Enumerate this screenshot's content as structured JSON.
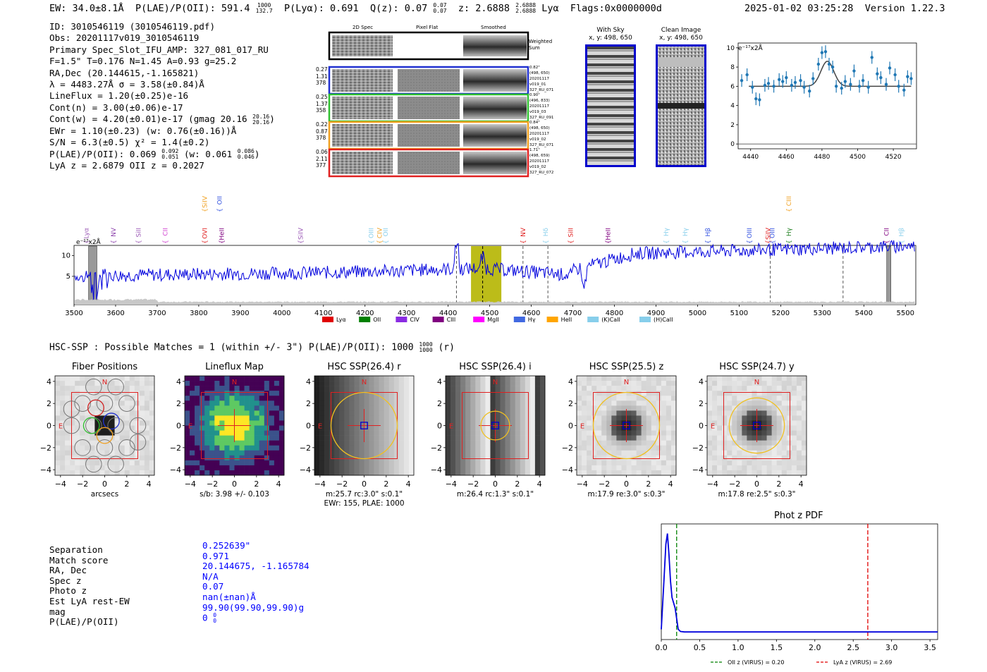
{
  "header": {
    "ew": "EW: 34.0±8.1Å",
    "plae_label": "P(LAE)/P(OII): 591.4",
    "plae_hi": "1000",
    "plae_lo": "132.7",
    "plya": "P(Lyα): 0.691",
    "qz_label": "Q(z): 0.07",
    "qz_hi": "0.07",
    "qz_lo": "0.07",
    "z_label": "z: 2.6888",
    "z_hi": "2.6888",
    "z_lo": "2.6888",
    "z_line": "Lyα",
    "flags": "Flags:0x0000000d",
    "timestamp": "2025-01-02 03:25:28",
    "version": "Version 1.22.3"
  },
  "info": {
    "id": "ID: 3010546119 (3010546119.pdf)",
    "obs": "Obs: 20201117v019_3010546119",
    "primary": "Primary Spec_Slot_IFU_AMP: 327_081_017_RU",
    "fiber": "F=1.5\"  T=0.176  N=1.45  A=0.93  g=25.2",
    "radec": "RA,Dec (20.144615,-1.165821)",
    "lambda": "λ = 4483.27Å  σ = 3.58(±0.84)Å",
    "lineflux": "LineFlux = 1.20(±0.25)e-16",
    "contn": "Cont(n) = 3.00(±0.06)e-17",
    "contw": "Cont(w) = 4.20(±0.01)e-17 (gmag 20.16",
    "contw_hi": "20.16",
    "contw_lo": "20.16",
    "contw_end": ")",
    "ewr": "EWr = 1.10(±0.23) (w: 0.76(±0.16))Å",
    "sn": "S/N = 6.3(±0.5)  χ² = 1.4(±0.2)",
    "plae2": "P(LAE)/P(OII): 0.069",
    "plae2_hi": "0.092",
    "plae2_lo": "0.051",
    "plae2_w": "(w: 0.061",
    "plae2_w_hi": "0.086",
    "plae2_w_lo": "0.046",
    "plae2_end": ")",
    "lyaz": "LyA z = 2.6879  OII z = 0.2027"
  },
  "cutouts": {
    "col_2d": "2D Spec",
    "col_flat": "Pixel Flat",
    "col_smooth": "Smoothed",
    "weighted": "Weighted Sum",
    "rows": [
      {
        "l1": "0.27",
        "l2": "1.31",
        "l3": "378",
        "r1": "0.82\"",
        "r2": "(498, 650)",
        "r3": "20201117",
        "r4": "v019_01",
        "r5": "327_RU_071",
        "color": "#2030d0"
      },
      {
        "l1": "0.25",
        "l2": "1.37",
        "l3": "358",
        "r1": "0.90\"",
        "r2": "(496, 833)",
        "r3": "20201117",
        "r4": "v019_03",
        "r5": "327_RU_091",
        "color": "#30c030"
      },
      {
        "l1": "0.22",
        "l2": "0.87",
        "l3": "378",
        "r1": "0.84\"",
        "r2": "(498, 650)",
        "r3": "20201117",
        "r4": "v019_02",
        "r5": "327_RU_071",
        "color": "#f0a020"
      },
      {
        "l1": "0.06",
        "l2": "2.11",
        "l3": "377",
        "r1": "1.71\"",
        "r2": "(498, 659)",
        "r3": "20201117",
        "r4": "v019_02",
        "r5": "327_RU_072",
        "color": "#e02020"
      }
    ],
    "with_sky_title": "With Sky",
    "with_sky_xy": "x, y: 498, 650",
    "clean_title": "Clean Image",
    "clean_xy": "x, y: 498, 650"
  },
  "gauss_plot": {
    "unit": "e⁻¹⁷x2Å",
    "x_ticks": [
      "4440",
      "4460",
      "4480",
      "4500",
      "4520"
    ],
    "y_ticks": [
      "0",
      "2",
      "4",
      "6",
      "8",
      "10"
    ]
  },
  "spectrum": {
    "unit": "e⁻¹⁷x2Å",
    "x_ticks": [
      "3500",
      "3600",
      "3700",
      "3800",
      "3900",
      "4000",
      "4100",
      "4200",
      "4300",
      "4400",
      "4500",
      "4600",
      "4700",
      "4800",
      "4900",
      "5000",
      "5100",
      "5200",
      "5300",
      "5400",
      "5500"
    ],
    "y_ticks": [
      "5",
      "10"
    ],
    "lines": [
      {
        "label": "Lyα",
        "wave": 3530,
        "color": "#9b59b6",
        "row": 0
      },
      {
        "label": "NV",
        "wave": 3595,
        "color": "#8e44ad",
        "row": 0
      },
      {
        "label": "SiII",
        "wave": 3655,
        "color": "#9b59b6",
        "row": 0
      },
      {
        "label": "CII",
        "wave": 3720,
        "color": "#d040d0",
        "row": 0
      },
      {
        "label": "OVI",
        "wave": 3815,
        "color": "#e02020",
        "row": 0
      },
      {
        "label": "HeII",
        "wave": 3855,
        "color": "#800080",
        "row": 0
      },
      {
        "label": "SiIV",
        "wave": 3815,
        "color": "#f0a020",
        "row": 2
      },
      {
        "label": "OII",
        "wave": 3850,
        "color": "#3050e0",
        "row": 2
      },
      {
        "label": "SiIV",
        "wave": 4045,
        "color": "#9b59b6",
        "row": 0
      },
      {
        "label": "OIII",
        "wave": 4215,
        "color": "#87ceeb",
        "row": 0
      },
      {
        "label": "CIV",
        "wave": 4235,
        "color": "#f0a020",
        "row": 0
      },
      {
        "label": "OII",
        "wave": 4250,
        "color": "#87ceeb",
        "row": 0
      },
      {
        "label": "NV",
        "wave": 4580,
        "color": "#e02020",
        "row": 0
      },
      {
        "label": "Hδ",
        "wave": 4635,
        "color": "#87ceeb",
        "row": 0
      },
      {
        "label": "SiII",
        "wave": 4695,
        "color": "#e02020",
        "row": 0
      },
      {
        "label": "HeII",
        "wave": 4785,
        "color": "#800080",
        "row": 0
      },
      {
        "label": "Hγ",
        "wave": 4925,
        "color": "#87ceeb",
        "row": 0
      },
      {
        "label": "Hγ",
        "wave": 4970,
        "color": "#87ceeb",
        "row": 0
      },
      {
        "label": "Hβ",
        "wave": 5025,
        "color": "#3050e0",
        "row": 0
      },
      {
        "label": "OIII",
        "wave": 5125,
        "color": "#3050e0",
        "row": 0
      },
      {
        "label": "SiIV",
        "wave": 5170,
        "color": "#e02020",
        "row": 0
      },
      {
        "label": "OIII",
        "wave": 5180,
        "color": "#3050e0",
        "row": 0
      },
      {
        "label": "Hγ",
        "wave": 5220,
        "color": "#208020",
        "row": 0
      },
      {
        "label": "CIII",
        "wave": 5220,
        "color": "#f0a020",
        "row": 2
      },
      {
        "label": "CII",
        "wave": 5455,
        "color": "#800080",
        "row": 0
      },
      {
        "label": "Hβ",
        "wave": 5490,
        "color": "#87ceeb",
        "row": 0
      }
    ],
    "legend": [
      {
        "label": "Lyα",
        "color": "#e00000"
      },
      {
        "label": "OII",
        "color": "#008000"
      },
      {
        "label": "CIV",
        "color": "#8a2be2"
      },
      {
        "label": "CIII",
        "color": "#800080"
      },
      {
        "label": "MgII",
        "color": "#ff00ff"
      },
      {
        "label": "Hγ",
        "color": "#4169e1"
      },
      {
        "label": "HeII",
        "color": "#ffa500"
      },
      {
        "label": "(K)CaII",
        "color": "#87ceeb"
      },
      {
        "label": "(H)CaII",
        "color": "#87ceeb"
      }
    ]
  },
  "hsc_line": {
    "text": "HSC-SSP : Possible Matches = 1 (within +/- 3\")  P(LAE)/P(OII): 1000",
    "hi": "1000",
    "lo": "1000",
    "end": "(r)"
  },
  "panels": [
    {
      "title": "Fiber Positions",
      "caption": "arcsecs",
      "caption2": ""
    },
    {
      "title": "Lineflux Map",
      "caption": "s/b: 3.98 +/- 0.103",
      "caption2": ""
    },
    {
      "title": "HSC SSP(26.4) r",
      "caption": "m:25.7 rc:3.0\"  s:0.1\"",
      "caption2": "EWr: 155, PLAE: 1000"
    },
    {
      "title": "HSC SSP(26.4) i",
      "caption": "m:26.4 rc:1.3\"  s:0.1\"",
      "caption2": ""
    },
    {
      "title": "HSC SSP(25.5) z",
      "caption": "m:17.9  re:3.0\"  s:0.3\"",
      "caption2": ""
    },
    {
      "title": "HSC SSP(24.7) y",
      "caption": "m:17.8  re:2.5\"  s:0.3\"",
      "caption2": ""
    }
  ],
  "panel_ticks": [
    "4",
    "2",
    "0",
    "−2",
    "−4"
  ],
  "panel_xticks": [
    "−4",
    "−2",
    "0",
    "2",
    "4"
  ],
  "panel_N": "N",
  "panel_E": "E",
  "match": {
    "labels": [
      "Separation",
      "Match score",
      "RA, Dec",
      "Spec z",
      "Photo z",
      "Est LyA rest-EW",
      "mag",
      "P(LAE)/P(OII)"
    ],
    "values": [
      "0.252639\"",
      "0.971",
      "20.144675, -1.165784",
      "N/A",
      "0.07",
      "nan(±nan)Å",
      "99.90(99.90,99.90)g",
      "0"
    ],
    "last_hi": "0",
    "last_lo": "0"
  },
  "chart_data": [
    {
      "type": "line",
      "title": "Phot z PDF",
      "xlabel": "",
      "ylabel": "",
      "xlim": [
        0,
        3.6
      ],
      "x_ticks": [
        "0.0",
        "0.5",
        "1.0",
        "1.5",
        "2.0",
        "2.5",
        "3.0",
        "3.5"
      ],
      "x": [
        0.0,
        0.03,
        0.06,
        0.08,
        0.1,
        0.12,
        0.14,
        0.16,
        0.18,
        0.2,
        0.22,
        0.25,
        0.3,
        0.5,
        1.0,
        2.0,
        3.0,
        3.6
      ],
      "y": [
        0.05,
        0.45,
        0.85,
        0.95,
        0.75,
        0.5,
        0.35,
        0.3,
        0.25,
        0.15,
        0.05,
        0.03,
        0.025,
        0.025,
        0.025,
        0.025,
        0.025,
        0.025
      ],
      "vlines": [
        {
          "x": 0.2,
          "label": "OII z (VIRUS) = 0.20",
          "color": "#008000"
        },
        {
          "x": 2.69,
          "label": "LyA z (VIRUS) = 2.69",
          "color": "#e00000"
        }
      ]
    },
    {
      "type": "scatter",
      "title": "",
      "xlabel": "",
      "ylabel": "e⁻¹⁷x2Å",
      "xlim": [
        4433,
        4533
      ],
      "ylim": [
        -0.5,
        10.5
      ],
      "x": [
        4435,
        4438,
        4441,
        4443,
        4445,
        4448,
        4450,
        4453,
        4456,
        4458,
        4460,
        4463,
        4465,
        4468,
        4470,
        4473,
        4475,
        4478,
        4480,
        4482,
        4484,
        4486,
        4488,
        4491,
        4493,
        4496,
        4498,
        4501,
        4503,
        4506,
        4508,
        4511,
        4513,
        4516,
        4518,
        4521,
        4523,
        4526,
        4528,
        4530
      ],
      "y": [
        6.6,
        7.2,
        5.9,
        4.7,
        4.6,
        6.1,
        6.3,
        6.0,
        6.7,
        6.5,
        6.9,
        6.1,
        6.4,
        6.6,
        5.9,
        5.5,
        6.8,
        8.3,
        9.5,
        9.6,
        8.3,
        8.0,
        6.0,
        5.8,
        6.5,
        6.2,
        7.6,
        6.0,
        6.6,
        5.9,
        9.0,
        7.3,
        6.9,
        6.2,
        7.9,
        7.2,
        6.0,
        5.6,
        7.0,
        6.8
      ],
      "fit_peak": 8.6,
      "fit_center": 4483,
      "fit_base": 6.0
    }
  ]
}
